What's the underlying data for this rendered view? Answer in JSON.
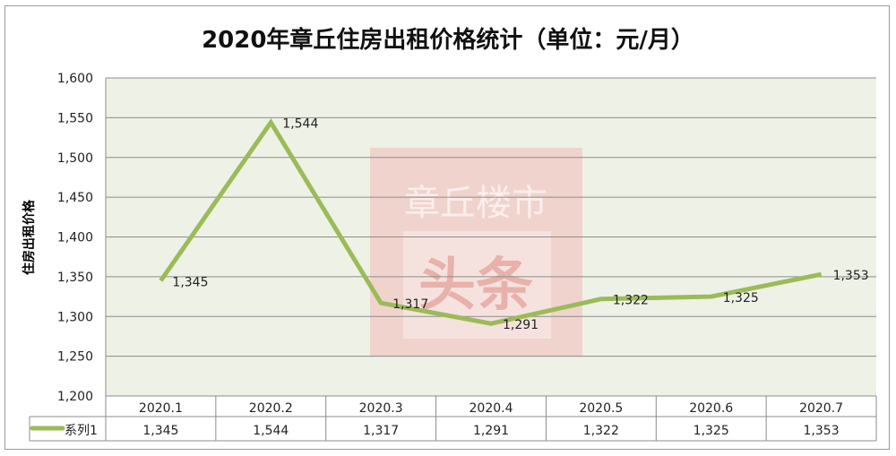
{
  "chart_data": {
    "type": "line",
    "title": "2020年章丘住房出租价格统计（单位：元/月）",
    "ylabel": "住房出租价格",
    "xlabel": "",
    "categories": [
      "2020.1",
      "2020.2",
      "2020.3",
      "2020.4",
      "2020.5",
      "2020.6",
      "2020.7"
    ],
    "series": [
      {
        "name": "系列1",
        "values": [
          1345,
          1544,
          1317,
          1291,
          1322,
          1325,
          1353
        ],
        "labels": [
          "1,345",
          "1,544",
          "1,317",
          "1,291",
          "1,322",
          "1,325",
          "1,353"
        ]
      }
    ],
    "ylim": [
      1200,
      1600
    ],
    "yticks": [
      "1,200",
      "1,250",
      "1,300",
      "1,350",
      "1,400",
      "1,450",
      "1,500",
      "1,550",
      "1,600"
    ],
    "grid": true,
    "legend": "data-table",
    "colors": {
      "line": "#9bbb59",
      "plot_bg": "#eef1e6",
      "grid": "#8c8c8c"
    }
  },
  "watermark": {
    "line1": "章丘楼市",
    "line2": "头条"
  }
}
